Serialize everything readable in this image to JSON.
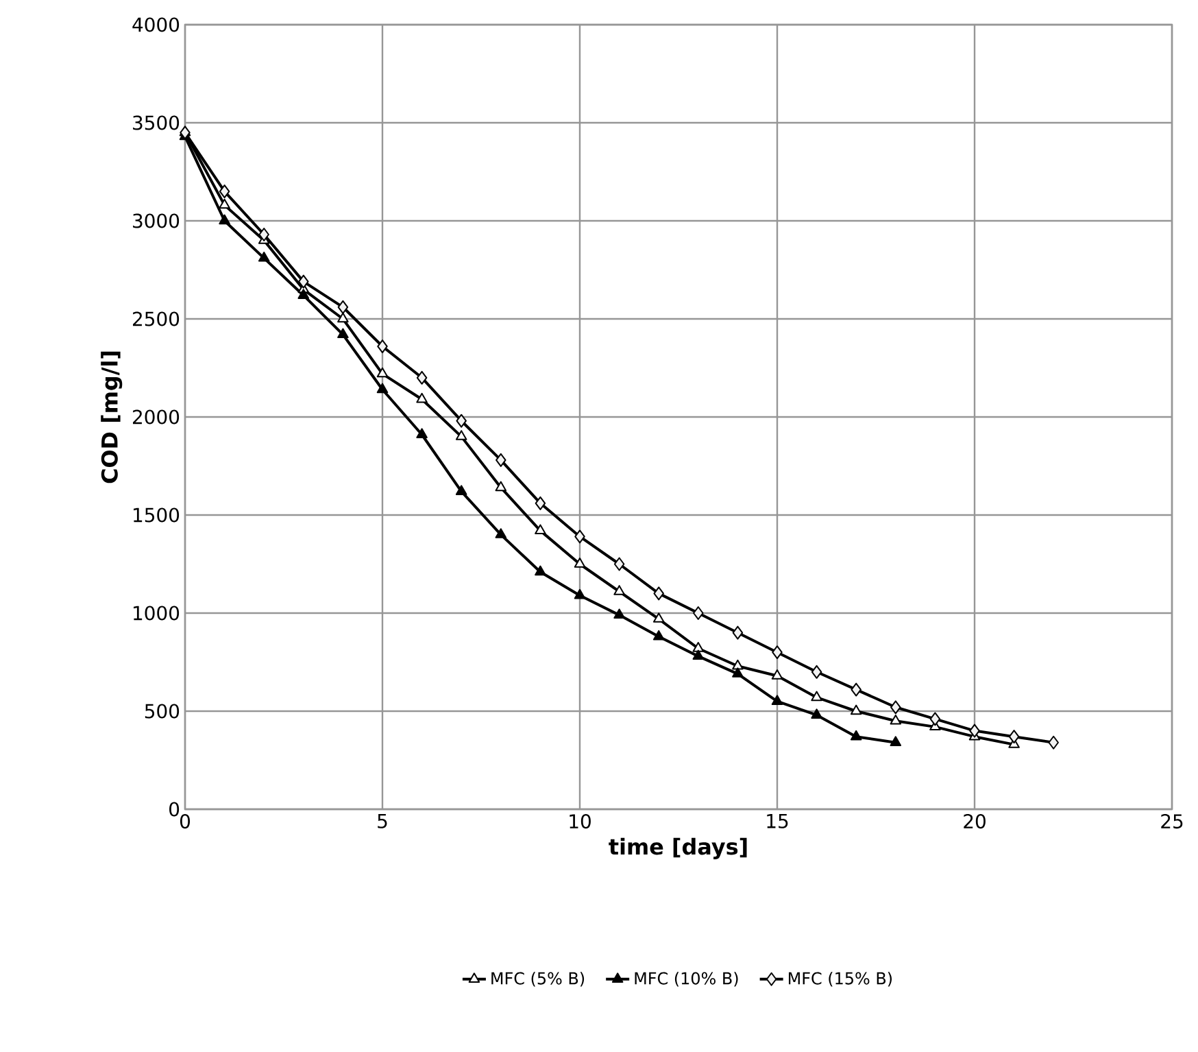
{
  "chart_data": {
    "type": "line",
    "xlabel": "time [days]",
    "ylabel": "COD [mg/l]",
    "xlim": [
      0,
      25
    ],
    "xticks": [
      0,
      5,
      10,
      15,
      20,
      25
    ],
    "ylim": [
      0,
      4000
    ],
    "yticks": [
      0,
      500,
      1000,
      1500,
      2000,
      2500,
      3000,
      3500,
      4000
    ],
    "grid": true,
    "legend": "bottom",
    "line_style": "solid",
    "series": [
      {
        "name": "MFC (5% B)",
        "color": "#ffffff",
        "marker": "triangle",
        "x": [
          0,
          1,
          2,
          3,
          4,
          5,
          6,
          7,
          8,
          9,
          10,
          11,
          12,
          13,
          14,
          15,
          16,
          17,
          18,
          19,
          20,
          21
        ],
        "values": [
          3450,
          3080,
          2900,
          2650,
          2500,
          2220,
          2090,
          1900,
          1640,
          1420,
          1250,
          1110,
          970,
          820,
          730,
          680,
          570,
          500,
          450,
          420,
          370,
          330
        ]
      },
      {
        "name": "MFC (10% B)",
        "color": "#000000",
        "marker": "triangle",
        "x": [
          0,
          1,
          2,
          3,
          4,
          5,
          6,
          7,
          8,
          9,
          10,
          11,
          12,
          13,
          14,
          15,
          16,
          17,
          18
        ],
        "values": [
          3430,
          3000,
          2810,
          2620,
          2420,
          2140,
          1910,
          1620,
          1400,
          1210,
          1090,
          990,
          880,
          780,
          690,
          550,
          480,
          370,
          340
        ]
      },
      {
        "name": "MFC (15% B)",
        "color": "#f2f2f2",
        "marker": "diamond",
        "x": [
          0,
          1,
          2,
          3,
          4,
          5,
          6,
          7,
          8,
          9,
          10,
          11,
          12,
          13,
          14,
          15,
          16,
          17,
          18,
          19,
          20,
          21,
          22
        ],
        "values": [
          3450,
          3150,
          2930,
          2690,
          2560,
          2360,
          2200,
          1980,
          1780,
          1560,
          1390,
          1250,
          1100,
          1000,
          900,
          800,
          700,
          610,
          520,
          460,
          400,
          370,
          340
        ]
      }
    ]
  }
}
